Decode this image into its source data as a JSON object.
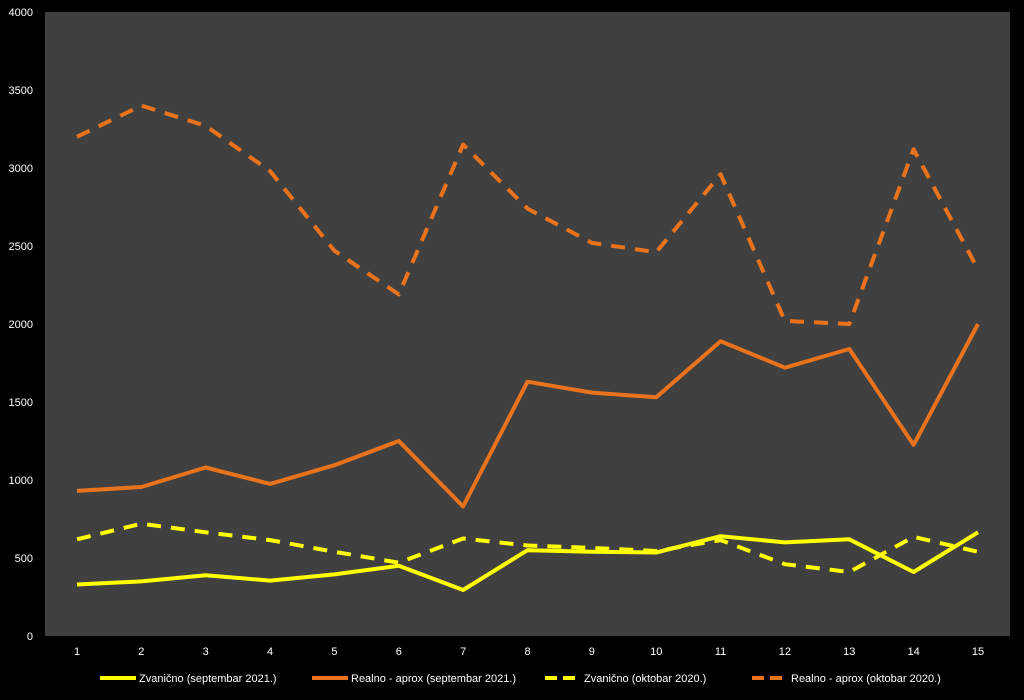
{
  "chart_data": {
    "type": "line",
    "categories": [
      "1",
      "2",
      "3",
      "4",
      "5",
      "6",
      "7",
      "8",
      "9",
      "10",
      "11",
      "12",
      "13",
      "14",
      "15"
    ],
    "ylim": [
      0,
      4000
    ],
    "y_ticks": [
      "0",
      "500",
      "1000",
      "1500",
      "2000",
      "2500",
      "3000",
      "3500",
      "4000"
    ],
    "y_tick_values": [
      0,
      500,
      1000,
      1500,
      2000,
      2500,
      3000,
      3500,
      4000
    ],
    "grid": false,
    "legend_position": "bottom",
    "plot_background": "#404040",
    "page_background": "#000000",
    "series": [
      {
        "name": "Zvanično (septembar 2021.)",
        "color": "#ffff00",
        "dash": "solid",
        "values": [
          330,
          350,
          390,
          355,
          395,
          450,
          295,
          550,
          540,
          535,
          640,
          600,
          620,
          410,
          665
        ]
      },
      {
        "name": "Realno - aprox (septembar 2021.)",
        "color": "#e8731c",
        "dash": "solid",
        "values": [
          930,
          955,
          1080,
          975,
          1095,
          1250,
          830,
          1630,
          1560,
          1530,
          1890,
          1720,
          1840,
          1225,
          2000
        ]
      },
      {
        "name": "Zvanično (oktobar 2020.)",
        "color": "#ffff00",
        "dash": "dashed",
        "values": [
          620,
          720,
          665,
          615,
          540,
          470,
          625,
          580,
          565,
          545,
          615,
          460,
          410,
          635,
          540
        ]
      },
      {
        "name": "Realno - aprox (oktobar 2020.)",
        "color": "#e8731c",
        "dash": "dashed",
        "values": [
          3200,
          3400,
          3270,
          2980,
          2470,
          2190,
          3150,
          2740,
          2520,
          2460,
          2960,
          2020,
          2000,
          3120,
          2350
        ]
      }
    ]
  }
}
